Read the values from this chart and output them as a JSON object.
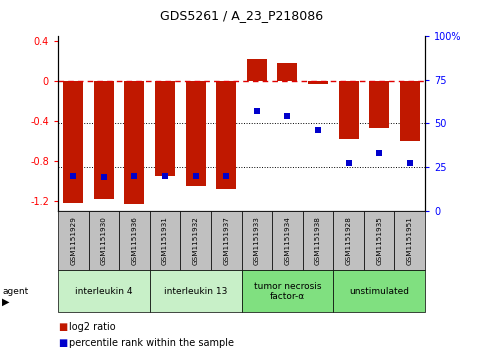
{
  "title": "GDS5261 / A_23_P218086",
  "samples": [
    "GSM1151929",
    "GSM1151930",
    "GSM1151936",
    "GSM1151931",
    "GSM1151932",
    "GSM1151937",
    "GSM1151933",
    "GSM1151934",
    "GSM1151938",
    "GSM1151928",
    "GSM1151935",
    "GSM1151951"
  ],
  "log2_ratio": [
    -1.22,
    -1.18,
    -1.23,
    -0.95,
    -1.05,
    -1.08,
    0.22,
    0.18,
    -0.03,
    -0.58,
    -0.47,
    -0.6
  ],
  "percentile": [
    20,
    19,
    20,
    20,
    20,
    20,
    57,
    54,
    46,
    27,
    33,
    27
  ],
  "agents": [
    {
      "label": "interleukin 4",
      "samples": [
        0,
        1,
        2
      ],
      "color": "#c8f0c8"
    },
    {
      "label": "interleukin 13",
      "samples": [
        3,
        4,
        5
      ],
      "color": "#c8f0c8"
    },
    {
      "label": "tumor necrosis\nfactor-α",
      "samples": [
        6,
        7,
        8
      ],
      "color": "#80e080"
    },
    {
      "label": "unstimulated",
      "samples": [
        9,
        10,
        11
      ],
      "color": "#80e080"
    }
  ],
  "ylim_left": [
    -1.3,
    0.45
  ],
  "ylim_right": [
    0,
    100
  ],
  "bar_color": "#c01800",
  "dot_color": "#0000cc",
  "hline_color": "#e00000",
  "dotline_color": "#000000",
  "sample_bg": "#c0c0c0",
  "legend_bar_color": "#c01800",
  "legend_dot_color": "#0000cc"
}
